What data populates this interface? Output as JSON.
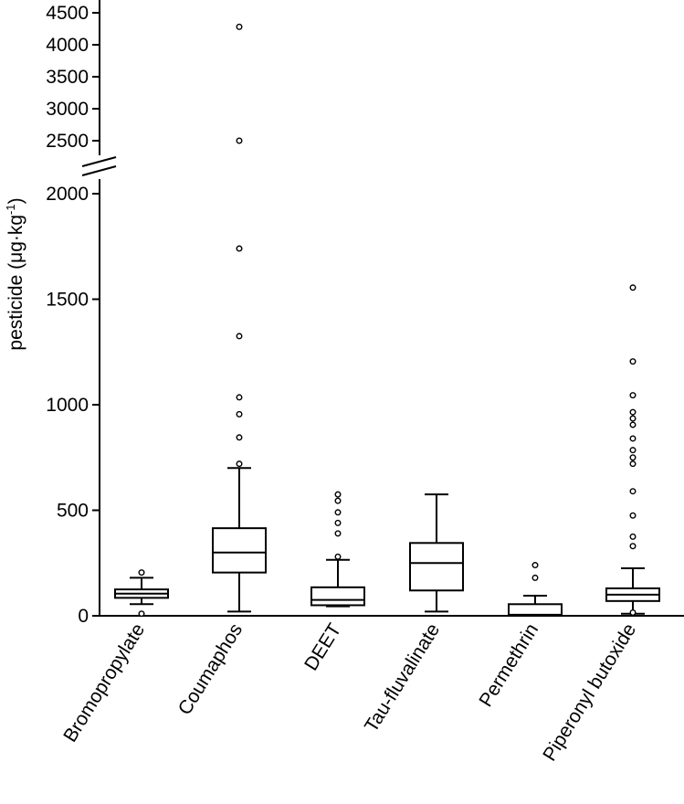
{
  "chart_data": {
    "type": "box",
    "ylabel": {
      "main": "pesticide (μg·kg",
      "superscript": "-1",
      "close": ")"
    },
    "y_axis_break": {
      "lower_range": [
        0,
        2000
      ],
      "upper_range": [
        2500,
        4500
      ]
    },
    "y_ticks_lower": [
      0,
      500,
      1000,
      1500,
      2000
    ],
    "y_ticks_upper": [
      2500,
      3000,
      3500,
      4000,
      4500
    ],
    "categories": [
      "Bromopropylate",
      "Coumaphos",
      "DEET",
      "Tau-fluvalinate",
      "Permethrin",
      "Piperonyl butoxide"
    ],
    "boxes": [
      {
        "name": "Bromopropylate",
        "whisker_low": 55,
        "q1": 85,
        "median": 105,
        "q3": 125,
        "whisker_high": 180,
        "outliers": [
          205,
          10
        ]
      },
      {
        "name": "Coumaphos",
        "whisker_low": 20,
        "q1": 205,
        "median": 300,
        "q3": 415,
        "whisker_high": 700,
        "outliers": [
          720,
          845,
          955,
          1035,
          1325,
          1740,
          2500,
          4280
        ]
      },
      {
        "name": "DEET",
        "whisker_low": 45,
        "q1": 50,
        "median": 75,
        "q3": 135,
        "whisker_high": 265,
        "outliers": [
          280,
          390,
          440,
          490,
          545,
          575
        ]
      },
      {
        "name": "Tau-fluvalinate",
        "whisker_low": 20,
        "q1": 120,
        "median": 250,
        "q3": 345,
        "whisker_high": 575,
        "outliers": []
      },
      {
        "name": "Permethrin",
        "whisker_low": 0,
        "q1": 0,
        "median": 5,
        "q3": 55,
        "whisker_high": 95,
        "outliers": [
          180,
          240
        ]
      },
      {
        "name": "Piperonyl butoxide",
        "whisker_low": 10,
        "q1": 70,
        "median": 100,
        "q3": 130,
        "whisker_high": 225,
        "outliers": [
          15,
          330,
          375,
          475,
          590,
          720,
          750,
          785,
          840,
          905,
          935,
          965,
          1045,
          1205,
          1555
        ]
      }
    ],
    "grid": false,
    "legend": "none"
  }
}
